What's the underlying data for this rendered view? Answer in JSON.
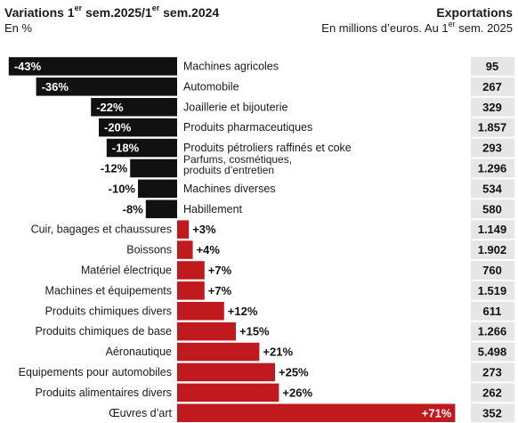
{
  "header": {
    "title_left_main": "Variations 1",
    "title_left_sup1": "er",
    "title_left_mid": " sem.2025/1",
    "title_left_sup2": "er",
    "title_left_end": " sem.2024",
    "subtitle_left": "En %",
    "title_right": "Exportations",
    "subtitle_right_main": "En millions d’euros. Au 1",
    "subtitle_right_sup": "er",
    "subtitle_right_end": " sem. 2025"
  },
  "colors": {
    "negative": "#111111",
    "positive": "#c01a1f",
    "value_box": "#e6e6e6"
  },
  "chart_data": {
    "type": "bar",
    "orientation": "horizontal",
    "categories": [
      "Machines agricoles",
      "Automobile",
      "Joaillerie et bijouterie",
      "Produits pharmaceutiques",
      "Produits pétroliers raffinés et coke",
      "Parfums, cosmétiques,\nproduits d’entretien",
      "Machines diverses",
      "Habillement",
      "Cuir, bagages et chaussures",
      "Boissons",
      "Matériel électrique",
      "Machines et équipements",
      "Produits chimiques divers",
      "Produits chimiques de base",
      "Aéronautique",
      "Equipements pour automobiles",
      "Produits alimentaires divers",
      "Œuvres d’art"
    ],
    "values": [
      -43,
      -36,
      -22,
      -20,
      -18,
      -12,
      -10,
      -8,
      3,
      4,
      7,
      7,
      12,
      15,
      21,
      25,
      26,
      71
    ],
    "value_labels": [
      "-43%",
      "-36%",
      "-22%",
      "-20%",
      "-18%",
      "-12%",
      "-10%",
      "-8%",
      "+3%",
      "+4%",
      "+7%",
      "+7%",
      "+12%",
      "+15%",
      "+21%",
      "+25%",
      "+26%",
      "+71%"
    ],
    "exports": [
      "95",
      "267",
      "329",
      "1.857",
      "293",
      "1.296",
      "534",
      "580",
      "1.149",
      "1.902",
      "760",
      "1.519",
      "611",
      "1.266",
      "5.498",
      "273",
      "262",
      "352"
    ]
  }
}
